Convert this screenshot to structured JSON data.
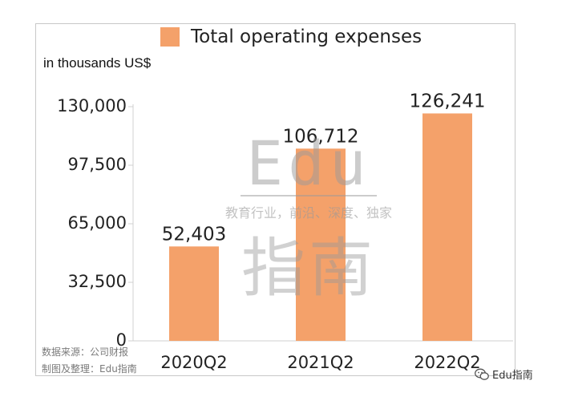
{
  "chart_data": {
    "type": "bar",
    "title": "",
    "legend": [
      "Total operating expenses"
    ],
    "units_label": "in thousands US$",
    "xlabel": "",
    "ylabel": "",
    "categories": [
      "2020Q2",
      "2021Q2",
      "2022Q2"
    ],
    "values": [
      52403,
      106712,
      126241
    ],
    "value_labels": [
      "52,403",
      "106,712",
      "126,241"
    ],
    "ylim": [
      0,
      130000
    ],
    "yticks": [
      0,
      32500,
      65000,
      97500,
      130000
    ],
    "ytick_labels": [
      "0",
      "32,500",
      "65,000",
      "97,500",
      "130,000"
    ],
    "grid": false,
    "legend_position": "top",
    "colors": {
      "bar": "#F4A16A",
      "text": "#222222",
      "axis": "#d0d0d0"
    }
  },
  "watermark": {
    "top": "Edu",
    "middle": "教育行业，前沿、深度、独家",
    "bottom": "指南",
    "color": "#9a9a9a"
  },
  "source": {
    "line1": "数据来源：公司财报",
    "line2": "制图及整理：Edu指南"
  },
  "brand": {
    "label": "Edu指南",
    "icon": "wechat-icon"
  }
}
